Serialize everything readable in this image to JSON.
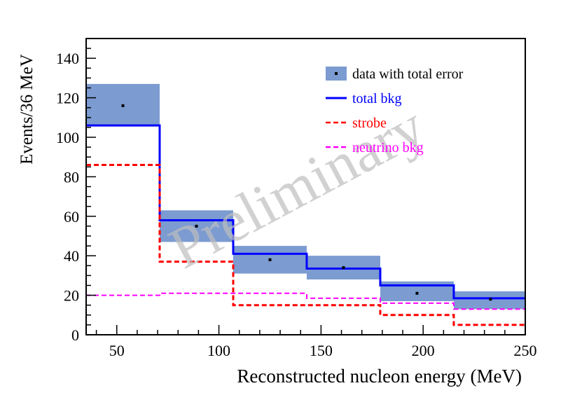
{
  "chart_data": {
    "type": "bar",
    "style": "step-histogram",
    "xlabel": "Reconstructed nucleon energy (MeV)",
    "ylabel": "Events/36 MeV",
    "xlim": [
      35,
      250
    ],
    "ylim": [
      0,
      150
    ],
    "x_ticks": [
      50,
      100,
      150,
      200,
      250
    ],
    "y_ticks": [
      0,
      20,
      40,
      60,
      80,
      100,
      120,
      140
    ],
    "grid": false,
    "legend_position": "top-right",
    "watermark": "Preliminary",
    "bin_edges": [
      35,
      71,
      107,
      143,
      179,
      215,
      251
    ],
    "bin_centers": [
      53,
      89,
      125,
      161,
      197,
      233
    ],
    "series": [
      {
        "name": "data with total error",
        "kind": "data",
        "values": [
          116,
          55,
          38,
          34,
          21,
          18
        ],
        "err_low": [
          106,
          47,
          31,
          28,
          17,
          13
        ],
        "err_high": [
          127,
          63,
          45,
          40,
          27,
          22
        ],
        "color": "#7b9bd1"
      },
      {
        "name": "total bkg",
        "kind": "step",
        "values": [
          106,
          58,
          41,
          33.5,
          25,
          18.5
        ],
        "color": "#0000ff"
      },
      {
        "name": "strobe",
        "kind": "dashed-step",
        "values": [
          86,
          37,
          15,
          15,
          10,
          5
        ],
        "color": "#ff0000"
      },
      {
        "name": "neutrino bkg",
        "kind": "dashed-step",
        "values": [
          20,
          21,
          21,
          18.5,
          16,
          13
        ],
        "color": "#ff00ff"
      }
    ]
  }
}
